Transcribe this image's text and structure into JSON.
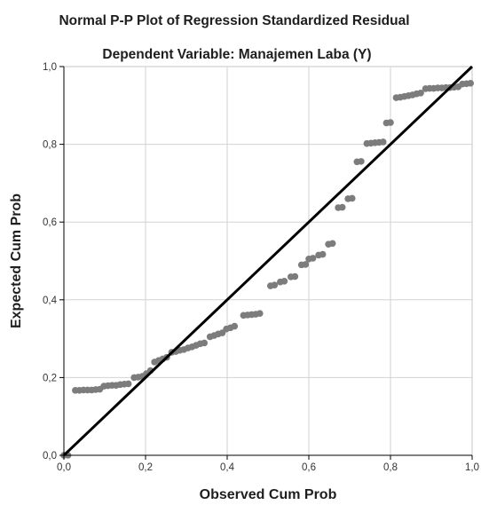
{
  "chart_data": {
    "type": "scatter",
    "title": "Normal P-P Plot of Regression Standardized Residual",
    "subtitle": "Dependent Variable: Manajemen Laba (Y)",
    "xlabel": "Observed Cum Prob",
    "ylabel": "Expected Cum Prob",
    "xlim": [
      0.0,
      1.0
    ],
    "ylim": [
      0.0,
      1.0
    ],
    "xticks": [
      "0,0",
      "0,2",
      "0,4",
      "0,6",
      "0,8",
      "1,0"
    ],
    "yticks": [
      "0,0",
      "0,2",
      "0,4",
      "0,6",
      "0,8",
      "1,0"
    ],
    "grid": true,
    "reference_line": {
      "from": [
        0.0,
        0.0
      ],
      "to": [
        1.0,
        1.0
      ]
    },
    "points": [
      {
        "x": 0.0,
        "y": 0.0
      },
      {
        "x": 0.01,
        "y": 0.0
      },
      {
        "x": 0.028,
        "y": 0.167
      },
      {
        "x": 0.038,
        "y": 0.167
      },
      {
        "x": 0.048,
        "y": 0.168
      },
      {
        "x": 0.058,
        "y": 0.168
      },
      {
        "x": 0.068,
        "y": 0.168
      },
      {
        "x": 0.078,
        "y": 0.169
      },
      {
        "x": 0.088,
        "y": 0.17
      },
      {
        "x": 0.098,
        "y": 0.178
      },
      {
        "x": 0.108,
        "y": 0.179
      },
      {
        "x": 0.118,
        "y": 0.18
      },
      {
        "x": 0.128,
        "y": 0.18
      },
      {
        "x": 0.138,
        "y": 0.182
      },
      {
        "x": 0.148,
        "y": 0.183
      },
      {
        "x": 0.158,
        "y": 0.184
      },
      {
        "x": 0.172,
        "y": 0.2
      },
      {
        "x": 0.182,
        "y": 0.201
      },
      {
        "x": 0.192,
        "y": 0.203
      },
      {
        "x": 0.202,
        "y": 0.21
      },
      {
        "x": 0.212,
        "y": 0.218
      },
      {
        "x": 0.222,
        "y": 0.24
      },
      {
        "x": 0.232,
        "y": 0.244
      },
      {
        "x": 0.242,
        "y": 0.248
      },
      {
        "x": 0.252,
        "y": 0.252
      },
      {
        "x": 0.264,
        "y": 0.265
      },
      {
        "x": 0.274,
        "y": 0.267
      },
      {
        "x": 0.284,
        "y": 0.27
      },
      {
        "x": 0.294,
        "y": 0.272
      },
      {
        "x": 0.304,
        "y": 0.276
      },
      {
        "x": 0.314,
        "y": 0.279
      },
      {
        "x": 0.324,
        "y": 0.283
      },
      {
        "x": 0.334,
        "y": 0.287
      },
      {
        "x": 0.344,
        "y": 0.289
      },
      {
        "x": 0.358,
        "y": 0.305
      },
      {
        "x": 0.368,
        "y": 0.308
      },
      {
        "x": 0.378,
        "y": 0.312
      },
      {
        "x": 0.388,
        "y": 0.315
      },
      {
        "x": 0.398,
        "y": 0.325
      },
      {
        "x": 0.408,
        "y": 0.328
      },
      {
        "x": 0.418,
        "y": 0.332
      },
      {
        "x": 0.44,
        "y": 0.36
      },
      {
        "x": 0.45,
        "y": 0.361
      },
      {
        "x": 0.46,
        "y": 0.362
      },
      {
        "x": 0.47,
        "y": 0.363
      },
      {
        "x": 0.48,
        "y": 0.365
      },
      {
        "x": 0.506,
        "y": 0.436
      },
      {
        "x": 0.516,
        "y": 0.438
      },
      {
        "x": 0.53,
        "y": 0.446
      },
      {
        "x": 0.54,
        "y": 0.448
      },
      {
        "x": 0.556,
        "y": 0.459
      },
      {
        "x": 0.566,
        "y": 0.46
      },
      {
        "x": 0.582,
        "y": 0.49
      },
      {
        "x": 0.592,
        "y": 0.491
      },
      {
        "x": 0.6,
        "y": 0.505
      },
      {
        "x": 0.61,
        "y": 0.507
      },
      {
        "x": 0.624,
        "y": 0.515
      },
      {
        "x": 0.634,
        "y": 0.517
      },
      {
        "x": 0.648,
        "y": 0.543
      },
      {
        "x": 0.658,
        "y": 0.545
      },
      {
        "x": 0.672,
        "y": 0.637
      },
      {
        "x": 0.682,
        "y": 0.638
      },
      {
        "x": 0.696,
        "y": 0.66
      },
      {
        "x": 0.706,
        "y": 0.661
      },
      {
        "x": 0.718,
        "y": 0.755
      },
      {
        "x": 0.728,
        "y": 0.756
      },
      {
        "x": 0.742,
        "y": 0.802
      },
      {
        "x": 0.752,
        "y": 0.803
      },
      {
        "x": 0.762,
        "y": 0.804
      },
      {
        "x": 0.772,
        "y": 0.805
      },
      {
        "x": 0.782,
        "y": 0.806
      },
      {
        "x": 0.79,
        "y": 0.855
      },
      {
        "x": 0.8,
        "y": 0.856
      },
      {
        "x": 0.814,
        "y": 0.92
      },
      {
        "x": 0.824,
        "y": 0.921
      },
      {
        "x": 0.834,
        "y": 0.923
      },
      {
        "x": 0.844,
        "y": 0.925
      },
      {
        "x": 0.854,
        "y": 0.927
      },
      {
        "x": 0.864,
        "y": 0.93
      },
      {
        "x": 0.874,
        "y": 0.932
      },
      {
        "x": 0.886,
        "y": 0.943
      },
      {
        "x": 0.896,
        "y": 0.944
      },
      {
        "x": 0.906,
        "y": 0.944
      },
      {
        "x": 0.916,
        "y": 0.945
      },
      {
        "x": 0.926,
        "y": 0.945
      },
      {
        "x": 0.936,
        "y": 0.946
      },
      {
        "x": 0.946,
        "y": 0.946
      },
      {
        "x": 0.956,
        "y": 0.947
      },
      {
        "x": 0.966,
        "y": 0.948
      },
      {
        "x": 0.976,
        "y": 0.955
      },
      {
        "x": 0.986,
        "y": 0.956
      },
      {
        "x": 0.996,
        "y": 0.957
      }
    ]
  },
  "colors": {
    "point_fill": "#7c7c7c",
    "reference_line": "#000000",
    "grid": "#d2d2d2",
    "axis": "#000000",
    "frame": "#c4c4c4"
  }
}
